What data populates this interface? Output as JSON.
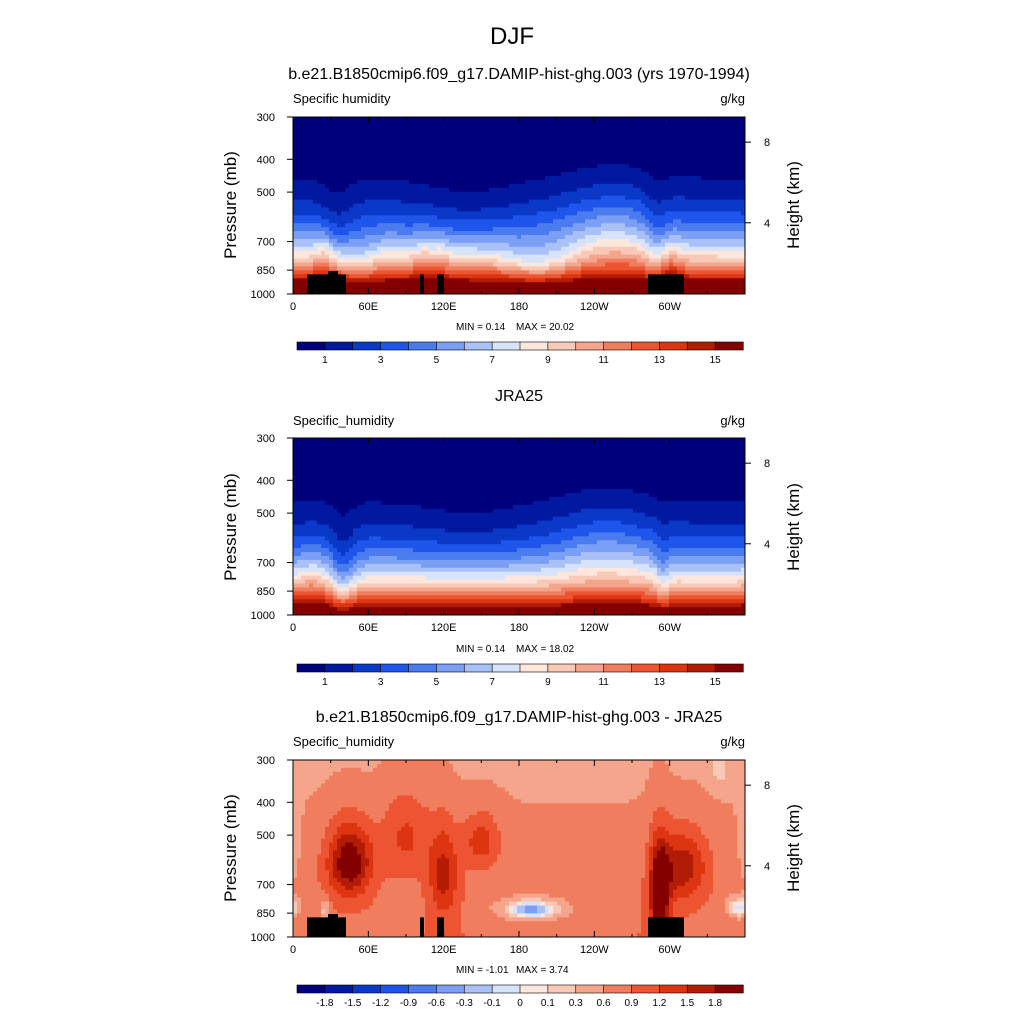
{
  "figure": {
    "title": "DJF"
  },
  "chart_data": [
    {
      "type": "heatmap",
      "title": "b.e21.B1850cmip6.f09_g17.DAMIP-hist-ghg.003 (yrs 1970-1994)",
      "variable": "Specific humidity",
      "units": "g/kg",
      "ylabel": "Pressure (mb)",
      "y2label": "Height (km)",
      "xticks": [
        "0",
        "60E",
        "120E",
        "180",
        "120W",
        "60W"
      ],
      "yticks": [
        "300",
        "400",
        "500",
        "700",
        "850",
        "1000"
      ],
      "y2ticks": [
        "8",
        "4"
      ],
      "min_label": "MIN =   0.14",
      "max_label": "MAX =  20.02",
      "colorbar_labels": [
        "1",
        "3",
        "5",
        "7",
        "9",
        "11",
        "13",
        "15"
      ],
      "colorbar_levels": [
        1,
        2,
        3,
        4,
        5,
        6,
        7,
        8,
        9,
        10,
        11,
        12,
        13,
        14,
        15
      ],
      "value_range": [
        0.14,
        20.02
      ]
    },
    {
      "type": "heatmap",
      "title": "JRA25",
      "variable": "Specific_humidity",
      "units": "g/kg",
      "ylabel": "Pressure (mb)",
      "y2label": "Height (km)",
      "xticks": [
        "0",
        "60E",
        "120E",
        "180",
        "120W",
        "60W"
      ],
      "yticks": [
        "300",
        "400",
        "500",
        "700",
        "850",
        "1000"
      ],
      "y2ticks": [
        "8",
        "4"
      ],
      "min_label": "MIN =   0.14",
      "max_label": "MAX =  18.02",
      "colorbar_labels": [
        "1",
        "3",
        "5",
        "7",
        "9",
        "11",
        "13",
        "15"
      ],
      "colorbar_levels": [
        1,
        2,
        3,
        4,
        5,
        6,
        7,
        8,
        9,
        10,
        11,
        12,
        13,
        14,
        15
      ],
      "value_range": [
        0.14,
        18.02
      ]
    },
    {
      "type": "heatmap",
      "title": "b.e21.B1850cmip6.f09_g17.DAMIP-hist-ghg.003 - JRA25",
      "variable": "Specific_humidity",
      "units": "g/kg",
      "ylabel": "Pressure (mb)",
      "y2label": "Height (km)",
      "xticks": [
        "0",
        "60E",
        "120E",
        "180",
        "120W",
        "60W"
      ],
      "yticks": [
        "300",
        "400",
        "500",
        "700",
        "850",
        "1000"
      ],
      "y2ticks": [
        "8",
        "4"
      ],
      "min_label": "MIN =  -1.01",
      "max_label": "MAX =   3.74",
      "colorbar_labels": [
        "-1.8",
        "-1.5",
        "-1.2",
        "-0.9",
        "-0.6",
        "-0.3",
        "-0.1",
        "0",
        "0.1",
        "0.3",
        "0.6",
        "0.9",
        "1.2",
        "1.5",
        "1.8"
      ],
      "colorbar_levels": [
        -1.8,
        -1.5,
        -1.2,
        -0.9,
        -0.6,
        -0.3,
        -0.1,
        0,
        0.1,
        0.3,
        0.6,
        0.9,
        1.2,
        1.5,
        1.8
      ],
      "value_range": [
        -1.01,
        3.74
      ]
    }
  ],
  "colormap": [
    "#00007d",
    "#0019a0",
    "#0a39c8",
    "#1f55ea",
    "#4a7cf0",
    "#7a9ff4",
    "#a9c1f6",
    "#d6e3fb",
    "#fde6dc",
    "#f9c8b6",
    "#f5a58b",
    "#f17d5f",
    "#ed5432",
    "#dd3411",
    "#b31c04",
    "#840000"
  ]
}
